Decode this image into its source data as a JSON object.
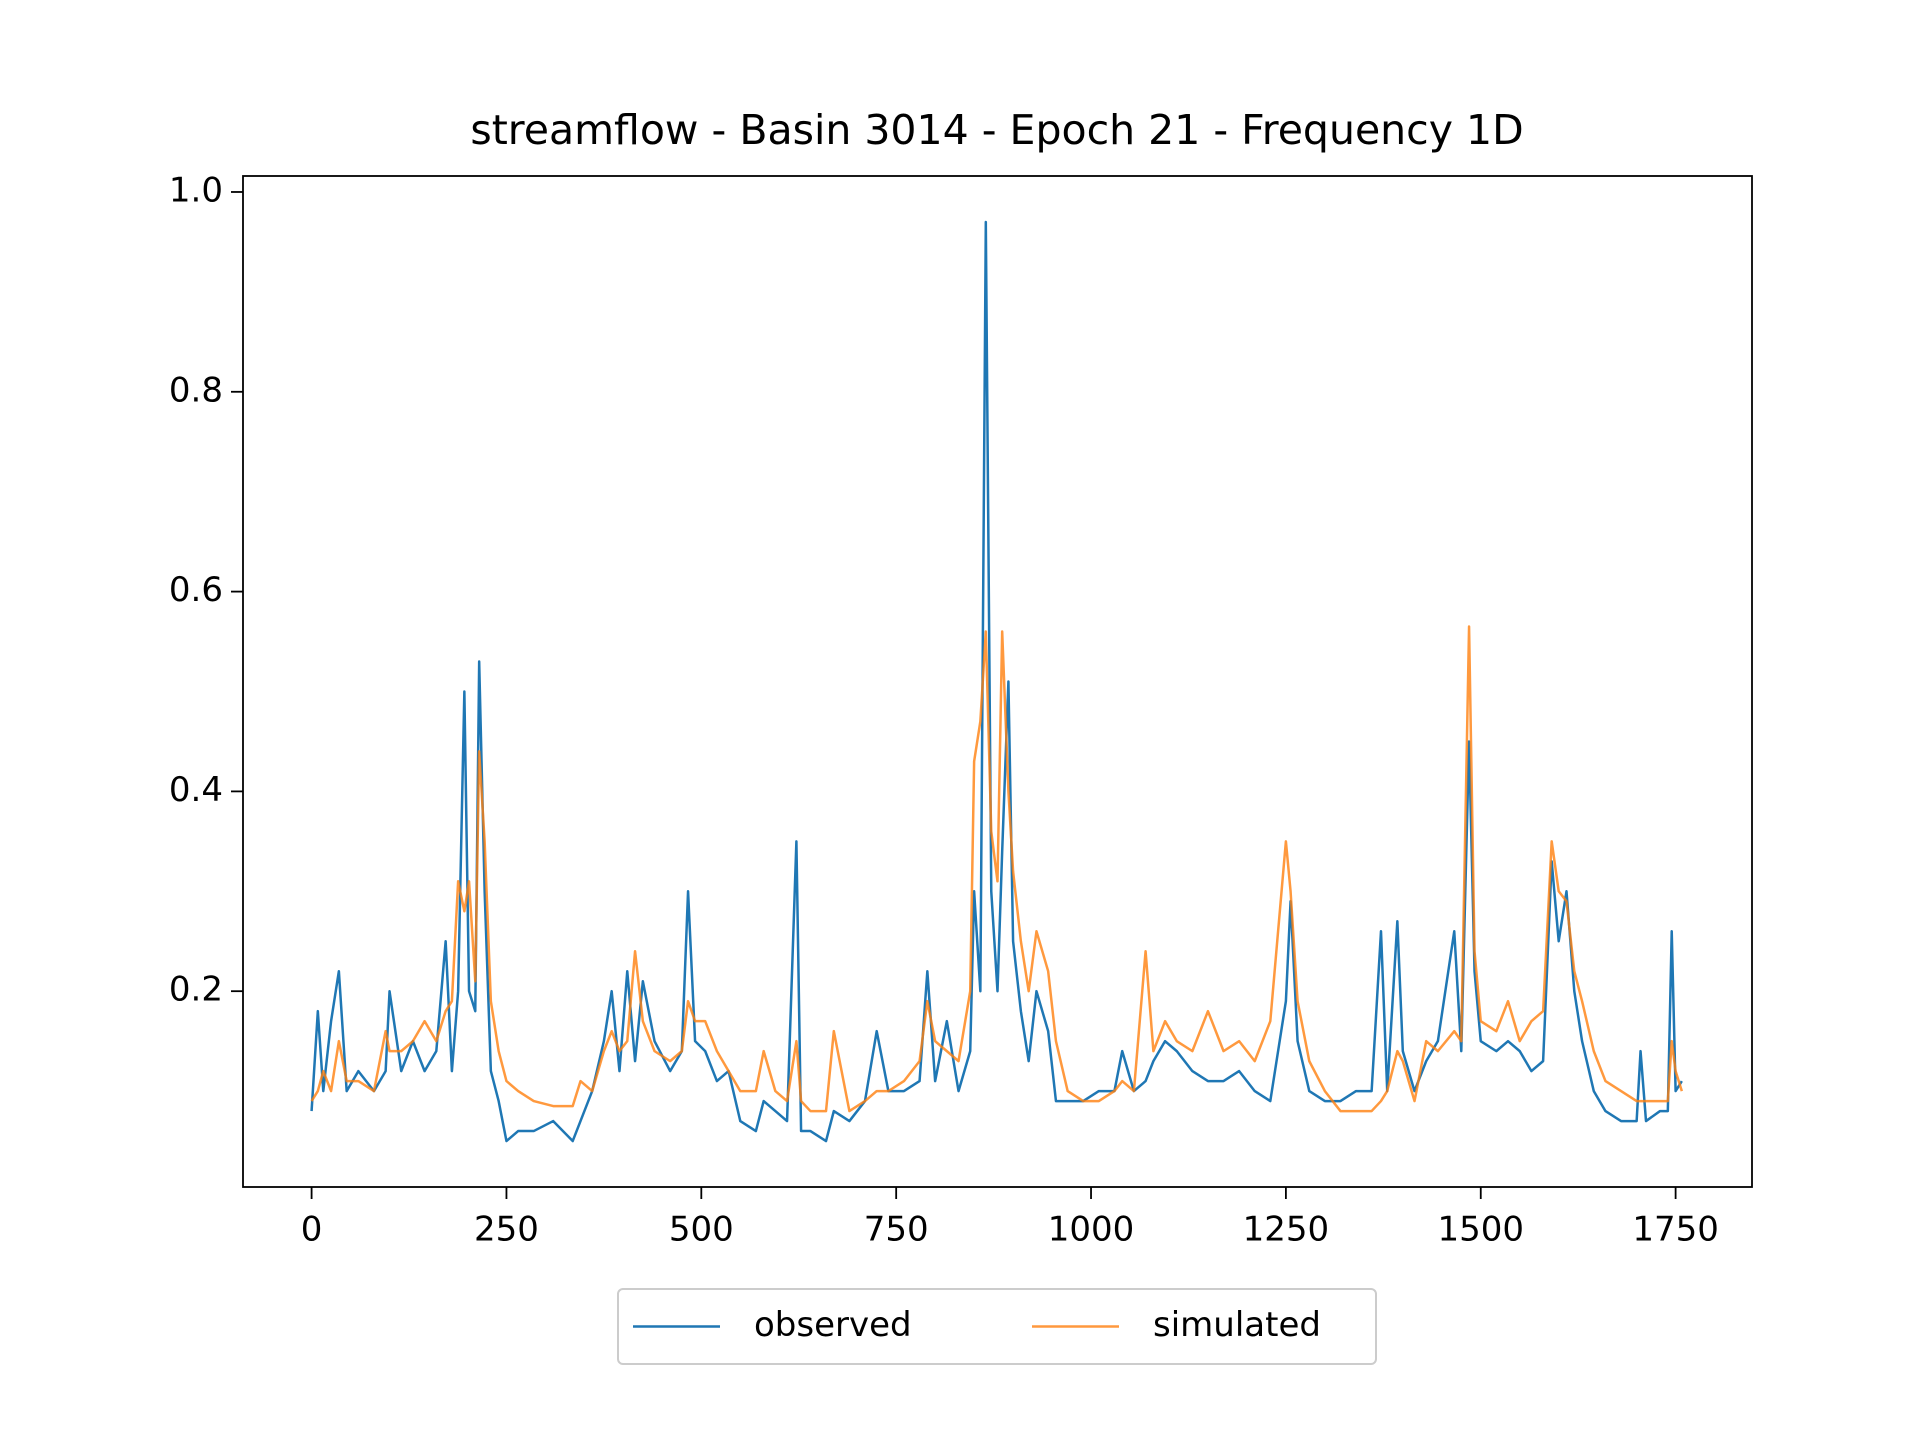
{
  "chart_data": {
    "type": "line",
    "title": "streamflow - Basin 3014 - Epoch 21 - Frequency 1D",
    "x": [
      0,
      8,
      15,
      25,
      35,
      45,
      60,
      80,
      95,
      100,
      115,
      130,
      145,
      160,
      172,
      180,
      188,
      196,
      202,
      210,
      215,
      222,
      230,
      240,
      250,
      265,
      285,
      310,
      335,
      345,
      360,
      375,
      385,
      395,
      405,
      415,
      425,
      440,
      460,
      475,
      483,
      492,
      505,
      520,
      535,
      550,
      570,
      580,
      595,
      610,
      622,
      628,
      640,
      660,
      670,
      690,
      710,
      725,
      740,
      760,
      780,
      790,
      800,
      815,
      830,
      845,
      850,
      858,
      865,
      872,
      880,
      886,
      894,
      900,
      910,
      920,
      930,
      945,
      955,
      970,
      990,
      1010,
      1030,
      1040,
      1055,
      1070,
      1080,
      1095,
      1110,
      1130,
      1150,
      1170,
      1190,
      1210,
      1230,
      1250,
      1256,
      1265,
      1280,
      1300,
      1320,
      1340,
      1360,
      1372,
      1380,
      1393,
      1400,
      1415,
      1430,
      1445,
      1466,
      1475,
      1485,
      1492,
      1500,
      1520,
      1535,
      1550,
      1565,
      1580,
      1591,
      1600,
      1610,
      1620,
      1630,
      1645,
      1660,
      1680,
      1700,
      1705,
      1712,
      1730,
      1740,
      1745,
      1750,
      1758
    ],
    "series": [
      {
        "name": "observed",
        "color": "#1f77b4",
        "values": [
          0.08,
          0.18,
          0.1,
          0.17,
          0.22,
          0.1,
          0.12,
          0.1,
          0.12,
          0.2,
          0.12,
          0.15,
          0.12,
          0.14,
          0.25,
          0.12,
          0.2,
          0.5,
          0.2,
          0.18,
          0.53,
          0.3,
          0.12,
          0.09,
          0.05,
          0.06,
          0.06,
          0.07,
          0.05,
          0.07,
          0.1,
          0.15,
          0.2,
          0.12,
          0.22,
          0.13,
          0.21,
          0.15,
          0.12,
          0.14,
          0.3,
          0.15,
          0.14,
          0.11,
          0.12,
          0.07,
          0.06,
          0.09,
          0.08,
          0.07,
          0.35,
          0.06,
          0.06,
          0.05,
          0.08,
          0.07,
          0.09,
          0.16,
          0.1,
          0.1,
          0.11,
          0.22,
          0.11,
          0.17,
          0.1,
          0.14,
          0.3,
          0.2,
          0.97,
          0.3,
          0.2,
          0.34,
          0.51,
          0.25,
          0.18,
          0.13,
          0.2,
          0.16,
          0.09,
          0.09,
          0.09,
          0.1,
          0.1,
          0.14,
          0.1,
          0.11,
          0.13,
          0.15,
          0.14,
          0.12,
          0.11,
          0.11,
          0.12,
          0.1,
          0.09,
          0.19,
          0.29,
          0.15,
          0.1,
          0.09,
          0.09,
          0.1,
          0.1,
          0.26,
          0.1,
          0.27,
          0.14,
          0.1,
          0.13,
          0.15,
          0.26,
          0.14,
          0.45,
          0.22,
          0.15,
          0.14,
          0.15,
          0.14,
          0.12,
          0.13,
          0.33,
          0.25,
          0.3,
          0.2,
          0.15,
          0.1,
          0.08,
          0.07,
          0.07,
          0.14,
          0.07,
          0.08,
          0.08,
          0.26,
          0.1,
          0.11
        ]
      },
      {
        "name": "simulated",
        "color": "#ff7f0e",
        "values": [
          0.09,
          0.1,
          0.12,
          0.1,
          0.15,
          0.11,
          0.11,
          0.1,
          0.16,
          0.14,
          0.14,
          0.15,
          0.17,
          0.15,
          0.18,
          0.19,
          0.31,
          0.28,
          0.31,
          0.21,
          0.44,
          0.35,
          0.19,
          0.14,
          0.11,
          0.1,
          0.09,
          0.085,
          0.085,
          0.11,
          0.1,
          0.14,
          0.16,
          0.14,
          0.15,
          0.24,
          0.17,
          0.14,
          0.13,
          0.14,
          0.19,
          0.17,
          0.17,
          0.14,
          0.12,
          0.1,
          0.1,
          0.14,
          0.1,
          0.09,
          0.15,
          0.09,
          0.08,
          0.08,
          0.16,
          0.08,
          0.09,
          0.1,
          0.1,
          0.11,
          0.13,
          0.19,
          0.15,
          0.14,
          0.13,
          0.2,
          0.43,
          0.47,
          0.56,
          0.36,
          0.31,
          0.56,
          0.4,
          0.32,
          0.25,
          0.2,
          0.26,
          0.22,
          0.15,
          0.1,
          0.09,
          0.09,
          0.1,
          0.11,
          0.1,
          0.24,
          0.14,
          0.17,
          0.15,
          0.14,
          0.18,
          0.14,
          0.15,
          0.13,
          0.17,
          0.35,
          0.3,
          0.19,
          0.13,
          0.1,
          0.08,
          0.08,
          0.08,
          0.09,
          0.1,
          0.14,
          0.13,
          0.09,
          0.15,
          0.14,
          0.16,
          0.15,
          0.565,
          0.24,
          0.17,
          0.16,
          0.19,
          0.15,
          0.17,
          0.18,
          0.35,
          0.3,
          0.29,
          0.22,
          0.19,
          0.14,
          0.11,
          0.1,
          0.09,
          0.09,
          0.09,
          0.09,
          0.09,
          0.15,
          0.12,
          0.1
        ]
      }
    ],
    "xlim": [
      -88,
      1848
    ],
    "ylim": [
      0.004,
      1.016
    ],
    "xticks": [
      0,
      250,
      500,
      750,
      1000,
      1250,
      1500,
      1750
    ],
    "yticks": [
      0.2,
      0.4,
      0.6,
      0.8,
      {
        "value": 1,
        "label": "1.0"
      }
    ],
    "legend": "lower center"
  }
}
